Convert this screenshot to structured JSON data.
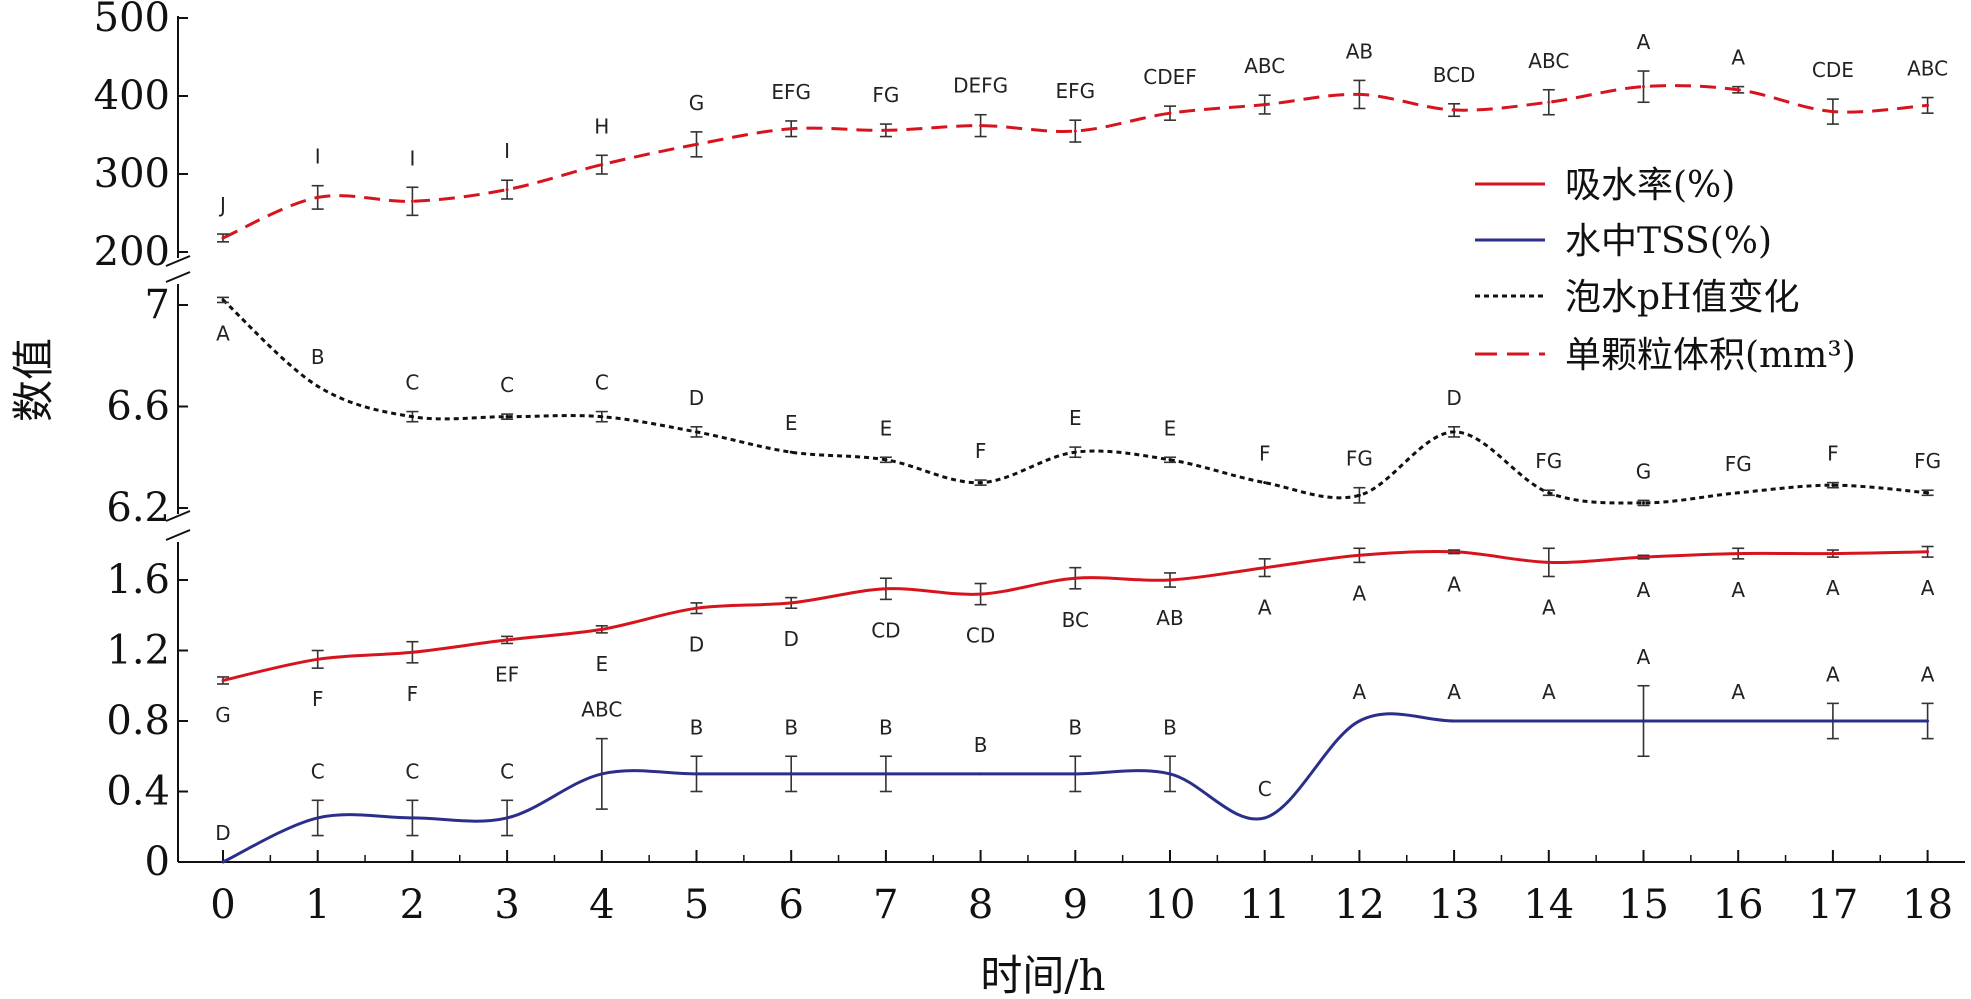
{
  "chart_data": {
    "type": "line",
    "xlabel": "时间/h",
    "ylabel": "数值",
    "x": [
      0,
      1,
      2,
      3,
      4,
      5,
      6,
      7,
      8,
      9,
      10,
      11,
      12,
      13,
      14,
      15,
      16,
      17,
      18
    ],
    "x_ticks": [
      "0",
      "1",
      "2",
      "3",
      "4",
      "5",
      "6",
      "7",
      "8",
      "9",
      "10",
      "11",
      "12",
      "13",
      "14",
      "15",
      "16",
      "17",
      "18"
    ],
    "panels": [
      {
        "id": "volume",
        "ylim": [
          180,
          500
        ],
        "ticks": [
          "200",
          "300",
          "400",
          "500"
        ],
        "tick_values": [
          200,
          300,
          400,
          500
        ]
      },
      {
        "id": "ph",
        "ylim": [
          6.15,
          7.05
        ],
        "ticks": [
          "6.2",
          "6.6",
          "7"
        ],
        "tick_values": [
          6.2,
          6.6,
          7.0
        ]
      },
      {
        "id": "rate",
        "ylim": [
          0,
          1.8
        ],
        "ticks": [
          "0",
          "0.4",
          "0.8",
          "1.2",
          "1.6"
        ],
        "tick_values": [
          0,
          0.4,
          0.8,
          1.2,
          1.6
        ]
      }
    ],
    "series": [
      {
        "key": "absorb",
        "name": "吸水率(%)",
        "panel": "rate",
        "style": "solid",
        "color": "#d7141e",
        "values": [
          1.03,
          1.15,
          1.19,
          1.26,
          1.32,
          1.44,
          1.47,
          1.55,
          1.52,
          1.61,
          1.6,
          1.67,
          1.74,
          1.76,
          1.7,
          1.73,
          1.75,
          1.75,
          1.76
        ],
        "errors": [
          0.02,
          0.05,
          0.06,
          0.02,
          0.02,
          0.03,
          0.03,
          0.06,
          0.06,
          0.06,
          0.04,
          0.05,
          0.04,
          0.01,
          0.08,
          0.01,
          0.03,
          0.02,
          0.03
        ],
        "letters": [
          "G",
          "F",
          "F",
          "EF",
          "E",
          "D",
          "D",
          "CD",
          "CD",
          "BC",
          "AB",
          "A",
          "A",
          "A",
          "A",
          "A",
          "A",
          "A",
          "A"
        ],
        "letter_pos": [
          "below",
          "below",
          "below",
          "below",
          "below",
          "below",
          "below",
          "below",
          "below",
          "below",
          "below",
          "below",
          "below",
          "below",
          "below",
          "below",
          "below",
          "below",
          "below"
        ]
      },
      {
        "key": "tss",
        "name": "水中TSS(%)",
        "panel": "rate",
        "style": "solid",
        "color": "#2b2f8a",
        "values": [
          0,
          0.25,
          0.25,
          0.25,
          0.5,
          0.5,
          0.5,
          0.5,
          0.5,
          0.5,
          0.5,
          0.25,
          0.8,
          0.8,
          0.8,
          0.8,
          0.8,
          0.8,
          0.8
        ],
        "errors": [
          0,
          0.1,
          0.1,
          0.1,
          0.2,
          0.1,
          0.1,
          0.1,
          0,
          0.1,
          0.1,
          0,
          0,
          0,
          0,
          0.2,
          0,
          0.1,
          0.1
        ],
        "letters": [
          "D",
          "C",
          "C",
          "C",
          "ABC",
          "B",
          "B",
          "B",
          "B",
          "B",
          "B",
          "C",
          "A",
          "A",
          "A",
          "A",
          "A",
          "A",
          "A"
        ],
        "letter_pos": [
          "above",
          "above",
          "above",
          "above",
          "above",
          "above",
          "above",
          "above",
          "above",
          "above",
          "above",
          "above",
          "above",
          "above",
          "above",
          "above",
          "above",
          "above",
          "above"
        ]
      },
      {
        "key": "ph",
        "name": "泡水pH值变化",
        "panel": "ph",
        "style": "dotted",
        "color": "#111111",
        "values": [
          7.02,
          6.68,
          6.56,
          6.56,
          6.56,
          6.5,
          6.42,
          6.39,
          6.3,
          6.42,
          6.39,
          6.3,
          6.25,
          6.5,
          6.26,
          6.22,
          6.26,
          6.29,
          6.26
        ],
        "errors": [
          0.01,
          0,
          0.02,
          0.01,
          0.02,
          0.02,
          0,
          0.01,
          0.01,
          0.02,
          0.01,
          0,
          0.03,
          0.02,
          0.01,
          0.01,
          0,
          0.01,
          0.01
        ],
        "letters": [
          "A",
          "B",
          "C",
          "C",
          "C",
          "D",
          "E",
          "E",
          "F",
          "E",
          "E",
          "F",
          "FG",
          "D",
          "FG",
          "G",
          "FG",
          "F",
          "FG"
        ],
        "letter_pos": [
          "below",
          "above",
          "above",
          "above",
          "above",
          "above",
          "above",
          "above",
          "above",
          "above",
          "above",
          "above",
          "above",
          "above",
          "above",
          "above",
          "above",
          "above",
          "above"
        ]
      },
      {
        "key": "volume",
        "name": "单颗粒体积(mm³)",
        "panel": "volume",
        "style": "dashed",
        "color": "#d7141e",
        "values": [
          218,
          270,
          265,
          280,
          312,
          338,
          358,
          356,
          362,
          355,
          378,
          389,
          402,
          382,
          392,
          412,
          408,
          380,
          388
        ],
        "errors": [
          5,
          15,
          18,
          12,
          12,
          16,
          10,
          8,
          14,
          14,
          9,
          12,
          18,
          8,
          16,
          20,
          4,
          16,
          10
        ],
        "letters": [
          "J",
          "I",
          "I",
          "I",
          "H",
          "G",
          "EFG",
          "FG",
          "DEFG",
          "EFG",
          "CDEF",
          "ABC",
          "AB",
          "BCD",
          "ABC",
          "A",
          "A",
          "CDE",
          "ABC"
        ],
        "letter_pos": [
          "above",
          "above",
          "above",
          "above",
          "above",
          "above",
          "above",
          "above",
          "above",
          "above",
          "above",
          "above",
          "above",
          "above",
          "above",
          "above",
          "above",
          "above",
          "above"
        ]
      }
    ],
    "legend": {
      "placement": "right",
      "order": [
        "absorb",
        "tss",
        "ph",
        "volume"
      ]
    }
  }
}
